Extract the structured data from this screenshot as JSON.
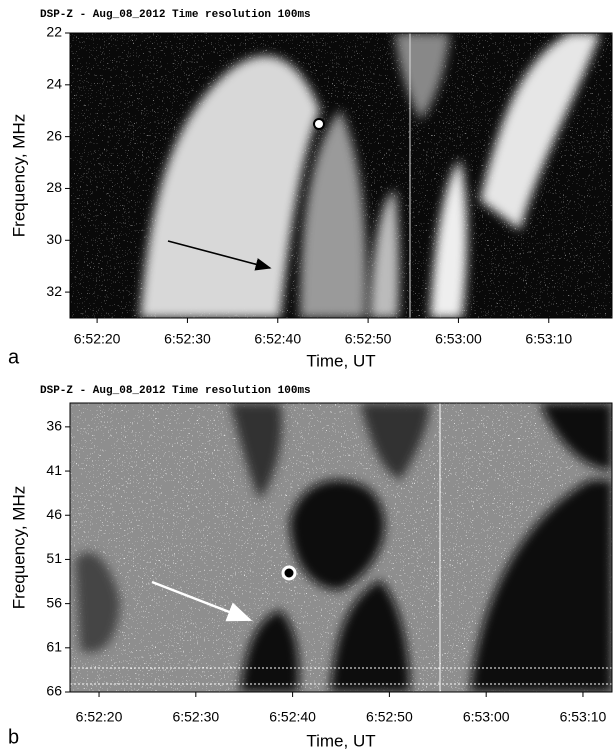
{
  "chart_data": [
    {
      "type": "spectrogram",
      "title": "DSP-Z - Aug_08_2012  Time resolution  100ms",
      "panel_label": "a",
      "xlabel": "Time, UT",
      "ylabel": "Frequency, MHz",
      "xlim": [
        "6:52:17",
        "6:53:17"
      ],
      "xticks": [
        "6:52:20",
        "6:52:30",
        "6:52:40",
        "6:52:50",
        "6:53:00",
        "6:53:10"
      ],
      "ylim": [
        22,
        33
      ],
      "yticks": [
        22,
        24,
        26,
        28,
        30,
        32
      ],
      "y_reversed": true
    },
    {
      "type": "spectrogram",
      "title": "DSP-Z - Aug_08_2012  Time resolution  100ms",
      "panel_label": "b",
      "xlabel": "Time, UT",
      "ylabel": "Frequency, MHz",
      "xlim": [
        "6:52:17",
        "6:53:13"
      ],
      "xticks": [
        "6:52:20",
        "6:52:30",
        "6:52:40",
        "6:52:50",
        "6:53:00",
        "6:53:10"
      ],
      "ylim": [
        33.3,
        66
      ],
      "yticks": [
        36,
        41,
        46,
        51,
        56,
        61,
        66
      ],
      "y_reversed": true
    }
  ]
}
